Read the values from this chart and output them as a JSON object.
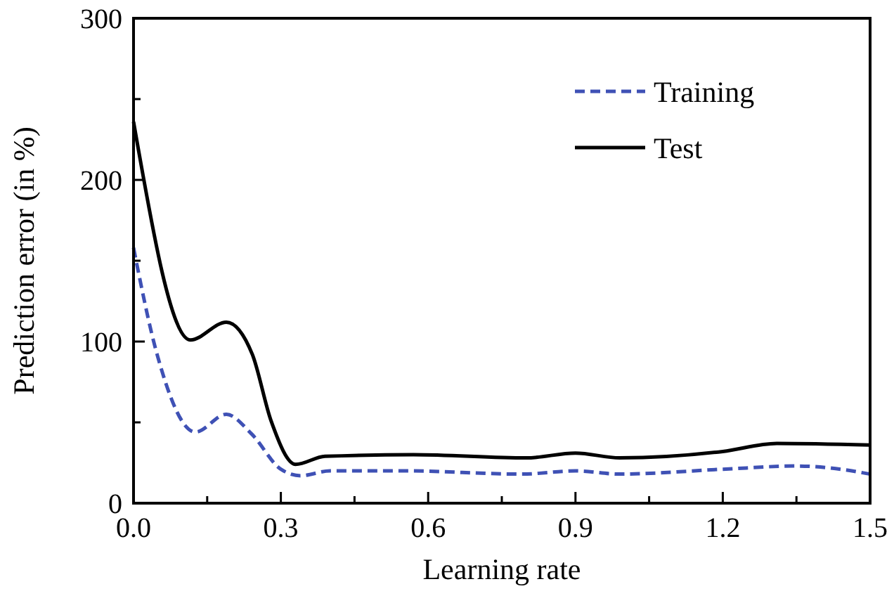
{
  "chart_data": {
    "type": "line",
    "xlabel": "Learning rate",
    "ylabel": "Prediction error (in %)",
    "xlim": [
      0,
      1.5
    ],
    "ylim": [
      0,
      300
    ],
    "xticks": [
      {
        "value": 0,
        "label": "0.0"
      },
      {
        "value": 0.15,
        "label": null
      },
      {
        "value": 0.3,
        "label": "0.3"
      },
      {
        "value": 0.45,
        "label": null
      },
      {
        "value": 0.6,
        "label": "0.6"
      },
      {
        "value": 0.75,
        "label": null
      },
      {
        "value": 0.9,
        "label": "0.9"
      },
      {
        "value": 1.05,
        "label": null
      },
      {
        "value": 1.2,
        "label": "1.2"
      },
      {
        "value": 1.35,
        "label": null
      },
      {
        "value": 1.5,
        "label": "1.5"
      }
    ],
    "yticks": [
      0,
      {
        "value": 50,
        "label": null
      },
      100,
      {
        "value": 150,
        "label": null
      },
      200,
      {
        "value": 250,
        "label": null
      },
      300
    ],
    "grid": false,
    "legend": "top right",
    "marker": "none",
    "series": [
      {
        "name": "Training",
        "color": "#3f51b5",
        "line_style": "dashed",
        "x": [
          0,
          0.048,
          0.126,
          0.189,
          0.24,
          0.3,
          0.34,
          0.4,
          0.55,
          0.79,
          0.9,
          0.99,
          1.2,
          1.35,
          1.44,
          1.5
        ],
        "values": [
          158,
          92,
          44,
          55,
          43,
          21,
          17,
          20,
          20,
          18,
          20,
          18,
          21,
          23,
          21,
          18
        ]
      },
      {
        "name": "Test",
        "color": "#000000",
        "line_style": "solid",
        "x": [
          0,
          0.116,
          0.189,
          0.242,
          0.28,
          0.33,
          0.39,
          0.57,
          0.8,
          0.9,
          0.99,
          1.2,
          1.31,
          1.5
        ],
        "values": [
          236,
          101,
          112,
          92,
          51,
          24,
          29,
          30,
          28,
          31,
          28,
          32,
          37,
          36
        ]
      }
    ]
  }
}
